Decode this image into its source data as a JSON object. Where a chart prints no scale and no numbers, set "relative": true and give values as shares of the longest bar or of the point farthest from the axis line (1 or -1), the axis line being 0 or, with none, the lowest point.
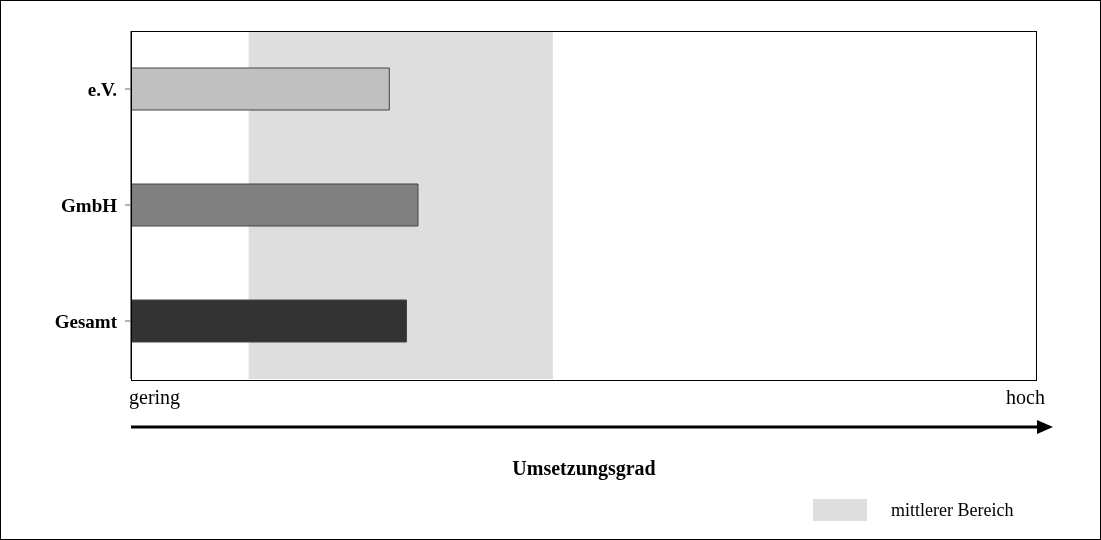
{
  "chart_data": {
    "type": "bar",
    "orientation": "horizontal",
    "relative": true,
    "categories": [
      "e.V.",
      "GmbH",
      "Gesamt"
    ],
    "values": [
      0.9,
      1,
      0.96
    ],
    "colors": [
      "#c0c0c0",
      "#808080",
      "#333333"
    ],
    "annotations": [
      "gering",
      "hoch",
      "Umsetzungsgrad"
    ],
    "bands": [
      {
        "axis": "x",
        "from": 0.41,
        "to": 1.47,
        "label": "mittlerer Bereich",
        "color": "#dedede"
      }
    ],
    "grid": false
  }
}
